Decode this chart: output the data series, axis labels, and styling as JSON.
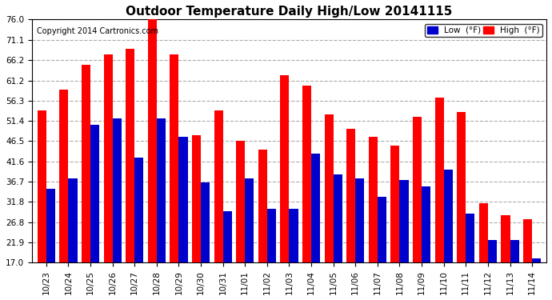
{
  "title": "Outdoor Temperature Daily High/Low 20141115",
  "copyright": "Copyright 2014 Cartronics.com",
  "dates": [
    "10/23",
    "10/24",
    "10/25",
    "10/26",
    "10/27",
    "10/28",
    "10/29",
    "10/30",
    "10/31",
    "11/01",
    "11/02",
    "11/03",
    "11/04",
    "11/05",
    "11/06",
    "11/07",
    "11/08",
    "11/09",
    "11/10",
    "11/11",
    "11/12",
    "11/13",
    "11/14"
  ],
  "high": [
    54.0,
    59.0,
    65.0,
    67.5,
    69.0,
    76.0,
    67.5,
    48.0,
    54.0,
    46.5,
    44.5,
    62.5,
    60.0,
    53.0,
    49.5,
    47.5,
    45.5,
    52.5,
    57.0,
    53.5,
    31.5,
    28.5,
    27.5
  ],
  "low": [
    35.0,
    37.5,
    50.5,
    52.0,
    42.5,
    52.0,
    47.5,
    36.5,
    29.5,
    37.5,
    30.0,
    30.0,
    43.5,
    38.5,
    37.5,
    33.0,
    37.0,
    35.5,
    39.5,
    29.0,
    22.5,
    22.5,
    18.0
  ],
  "yticks": [
    17.0,
    21.9,
    26.8,
    31.8,
    36.7,
    41.6,
    46.5,
    51.4,
    56.3,
    61.2,
    66.2,
    71.1,
    76.0
  ],
  "ymin": 17.0,
  "ymax": 76.0,
  "high_color": "#ff0000",
  "low_color": "#0000cc",
  "bg_color": "#ffffff",
  "grid_color": "#aaaaaa",
  "title_fontsize": 11,
  "copyright_fontsize": 7,
  "legend_low_label": "Low  (°F)",
  "legend_high_label": "High  (°F)"
}
